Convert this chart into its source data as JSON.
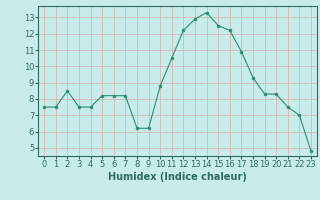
{
  "x": [
    0,
    1,
    2,
    3,
    4,
    5,
    6,
    7,
    8,
    9,
    10,
    11,
    12,
    13,
    14,
    15,
    16,
    17,
    18,
    19,
    20,
    21,
    22,
    23
  ],
  "y": [
    7.5,
    7.5,
    8.5,
    7.5,
    7.5,
    8.2,
    8.2,
    8.2,
    6.2,
    6.2,
    8.8,
    10.5,
    12.2,
    12.9,
    13.3,
    12.5,
    12.2,
    10.9,
    9.3,
    8.3,
    8.3,
    7.5,
    7.0,
    4.8
  ],
  "line_color": "#2e8b70",
  "marker": "o",
  "marker_size": 2,
  "bg_color": "#c8ece9",
  "grid_color": "#e8c8c8",
  "xlabel": "Humidex (Indice chaleur)",
  "ylim": [
    4.5,
    13.7
  ],
  "xlim": [
    -0.5,
    23.5
  ],
  "yticks": [
    5,
    6,
    7,
    8,
    9,
    10,
    11,
    12,
    13
  ],
  "xticks": [
    0,
    1,
    2,
    3,
    4,
    5,
    6,
    7,
    8,
    9,
    10,
    11,
    12,
    13,
    14,
    15,
    16,
    17,
    18,
    19,
    20,
    21,
    22,
    23
  ],
  "tick_fontsize": 6,
  "xlabel_fontsize": 7,
  "tick_color": "#2e6b5e",
  "spine_color": "#2e6b5e",
  "grid_major_color": "#d4b8b8",
  "grid_minor_color": "#e0cccc"
}
